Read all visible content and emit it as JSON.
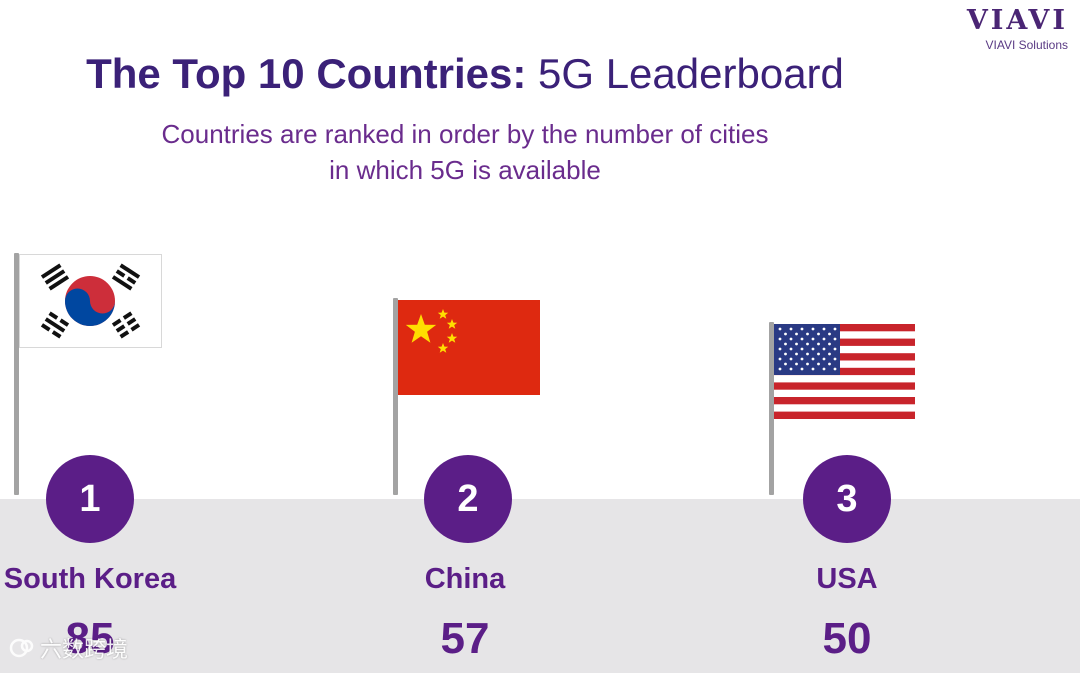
{
  "logo": {
    "mark": "VIAVI",
    "sub": "VIAVI Solutions"
  },
  "title": {
    "bold": "The Top 10 Countries:",
    "light": "5G Leaderboard"
  },
  "subtitle": [
    "Countries are ranked in order by the number of cities",
    "in which 5G is available"
  ],
  "colors": {
    "accent": "#5b1e87",
    "title": "#3b2178",
    "podium": "#e6e5e7"
  },
  "chart_data": {
    "type": "bar",
    "title": "The Top 10 Countries: 5G Leaderboard",
    "categories": [
      "South Korea",
      "China",
      "USA"
    ],
    "ranks": [
      "1",
      "2",
      "3"
    ],
    "values": [
      85,
      57,
      50
    ],
    "flags": [
      "south-korea-flag",
      "china-flag",
      "usa-flag"
    ]
  },
  "watermark": "六数跨境"
}
